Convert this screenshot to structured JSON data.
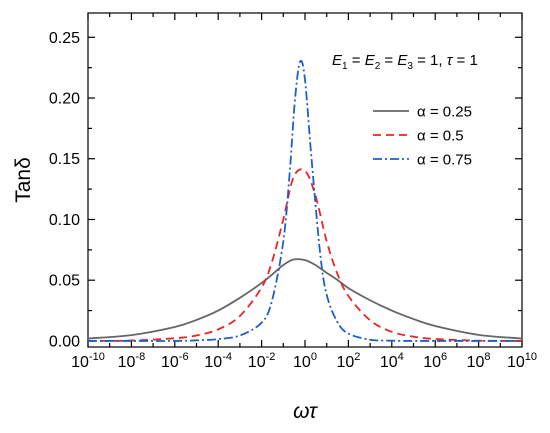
{
  "chart_data": {
    "type": "line",
    "xlabel": "ωτ",
    "ylabel": "Tanδ",
    "x_scale": "log",
    "xlim": [
      1e-10,
      10000000000.0
    ],
    "ylim": [
      -0.005,
      0.27
    ],
    "x_ticks": [
      {
        "value": 1e-10,
        "base": "10",
        "exp": "-10"
      },
      {
        "value": 1e-08,
        "base": "10",
        "exp": "-8"
      },
      {
        "value": 1e-06,
        "base": "10",
        "exp": "-6"
      },
      {
        "value": 0.0001,
        "base": "10",
        "exp": "-4"
      },
      {
        "value": 0.01,
        "base": "10",
        "exp": "-2"
      },
      {
        "value": 1,
        "base": "10",
        "exp": "0"
      },
      {
        "value": 100.0,
        "base": "10",
        "exp": "2"
      },
      {
        "value": 10000.0,
        "base": "10",
        "exp": "4"
      },
      {
        "value": 1000000.0,
        "base": "10",
        "exp": "6"
      },
      {
        "value": 100000000.0,
        "base": "10",
        "exp": "8"
      },
      {
        "value": 10000000000.0,
        "base": "10",
        "exp": "10"
      }
    ],
    "y_ticks": [
      {
        "value": 0.0,
        "label": "0.00"
      },
      {
        "value": 0.05,
        "label": "0.05"
      },
      {
        "value": 0.1,
        "label": "0.10"
      },
      {
        "value": 0.15,
        "label": "0.15"
      },
      {
        "value": 0.2,
        "label": "0.20"
      },
      {
        "value": 0.25,
        "label": "0.25"
      }
    ],
    "annotation": "E₁ = E₂ = E₃ = 1, τ = 1",
    "legend_position": "top-right",
    "series": [
      {
        "name": "α = 0.25",
        "color": "#666666",
        "dash": "solid",
        "x": [
          1e-10,
          1e-08,
          1e-06,
          1e-05,
          0.0001,
          0.001,
          0.01,
          0.03,
          0.1,
          0.3,
          1,
          3,
          10,
          30,
          100,
          1000.0,
          10000.0,
          100000.0,
          1000000.0,
          100000000.0,
          10000000000.0
        ],
        "y": [
          0.002,
          0.0048,
          0.0115,
          0.0173,
          0.025,
          0.0355,
          0.0477,
          0.0545,
          0.0625,
          0.067,
          0.0665,
          0.0625,
          0.056,
          0.0505,
          0.0435,
          0.0335,
          0.025,
          0.018,
          0.0123,
          0.005,
          0.002
        ]
      },
      {
        "name": "α = 0.5",
        "color": "#ee2222",
        "dash": "dashed",
        "x": [
          1e-10,
          1e-08,
          1e-06,
          1e-05,
          0.0001,
          0.001,
          0.01,
          0.03,
          0.1,
          0.3,
          1,
          3,
          10,
          30,
          100,
          1000.0,
          10000.0,
          100000.0,
          1000000.0,
          100000000.0,
          10000000000.0
        ],
        "y": [
          0.0,
          0.0003,
          0.0022,
          0.0045,
          0.0095,
          0.0205,
          0.044,
          0.065,
          0.1,
          0.135,
          0.14,
          0.12,
          0.082,
          0.056,
          0.037,
          0.017,
          0.0075,
          0.0035,
          0.0016,
          0.0002,
          0.0
        ]
      },
      {
        "name": "α = 0.75",
        "color": "#1f5fc8",
        "dash": "dashdot",
        "x": [
          1e-10,
          1e-08,
          1e-06,
          1e-05,
          0.0001,
          0.001,
          0.01,
          0.03,
          0.1,
          0.2,
          0.35,
          0.6,
          1,
          2,
          5,
          10,
          30,
          100,
          1000.0,
          10000.0,
          100000.0,
          1000000.0,
          100000000.0,
          10000000000.0
        ],
        "y": [
          0.0,
          0.0,
          0.0,
          0.0005,
          0.0015,
          0.0045,
          0.015,
          0.033,
          0.082,
          0.14,
          0.2,
          0.23,
          0.215,
          0.15,
          0.072,
          0.038,
          0.016,
          0.006,
          0.001,
          0.0002,
          0.0,
          0.0,
          0.0,
          0.0
        ]
      }
    ]
  }
}
